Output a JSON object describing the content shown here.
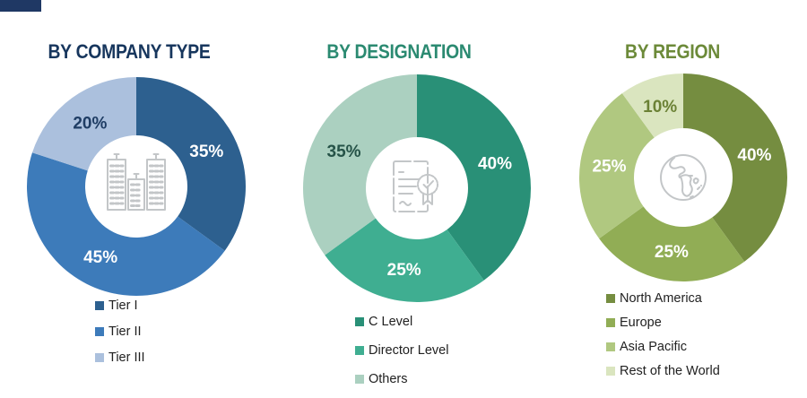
{
  "canvas": {
    "background": "#ffffff",
    "corner_bar_color": "#1f3864"
  },
  "chart_data": [
    {
      "type": "pie",
      "subtype": "donut",
      "title": "BY COMPANY TYPE",
      "title_color": "#17365d",
      "center_icon": "buildings-icon",
      "legend_position": "bottom-left",
      "labels_unit": "%",
      "slices": [
        {
          "label": "Tier I",
          "value": 35,
          "value_label": "35%",
          "color": "#2d608f",
          "value_label_color": "#ffffff"
        },
        {
          "label": "Tier II",
          "value": 45,
          "value_label": "45%",
          "color": "#3d7bba",
          "value_label_color": "#ffffff"
        },
        {
          "label": "Tier III",
          "value": 20,
          "value_label": "20%",
          "color": "#abc0dd",
          "value_label_color": "#1f3d64"
        }
      ]
    },
    {
      "type": "pie",
      "subtype": "donut",
      "title": "BY DESIGNATION",
      "title_color": "#2b8a71",
      "center_icon": "certificate-icon",
      "legend_position": "bottom-left",
      "labels_unit": "%",
      "slices": [
        {
          "label": "C Level",
          "value": 40,
          "value_label": "40%",
          "color": "#299077",
          "value_label_color": "#ffffff"
        },
        {
          "label": "Director Level",
          "value": 25,
          "value_label": "25%",
          "color": "#3fae91",
          "value_label_color": "#ffffff"
        },
        {
          "label": "Others",
          "value": 35,
          "value_label": "35%",
          "color": "#abd0c0",
          "value_label_color": "#265348"
        }
      ]
    },
    {
      "type": "pie",
      "subtype": "donut",
      "title": "BY REGION",
      "title_color": "#6c8a39",
      "center_icon": "globe-icon",
      "legend_position": "bottom-left",
      "labels_unit": "%",
      "slices": [
        {
          "label": "North America",
          "value": 40,
          "value_label": "40%",
          "color": "#758d40",
          "value_label_color": "#ffffff"
        },
        {
          "label": "Europe",
          "value": 25,
          "value_label": "25%",
          "color": "#91ad55",
          "value_label_color": "#ffffff"
        },
        {
          "label": "Asia Pacific",
          "value": 25,
          "value_label": "25%",
          "color": "#b0c880",
          "value_label_color": "#ffffff"
        },
        {
          "label": "Rest of the World",
          "value": 10,
          "value_label": "10%",
          "color": "#dae5bf",
          "value_label_color": "#6b8135"
        }
      ]
    }
  ]
}
